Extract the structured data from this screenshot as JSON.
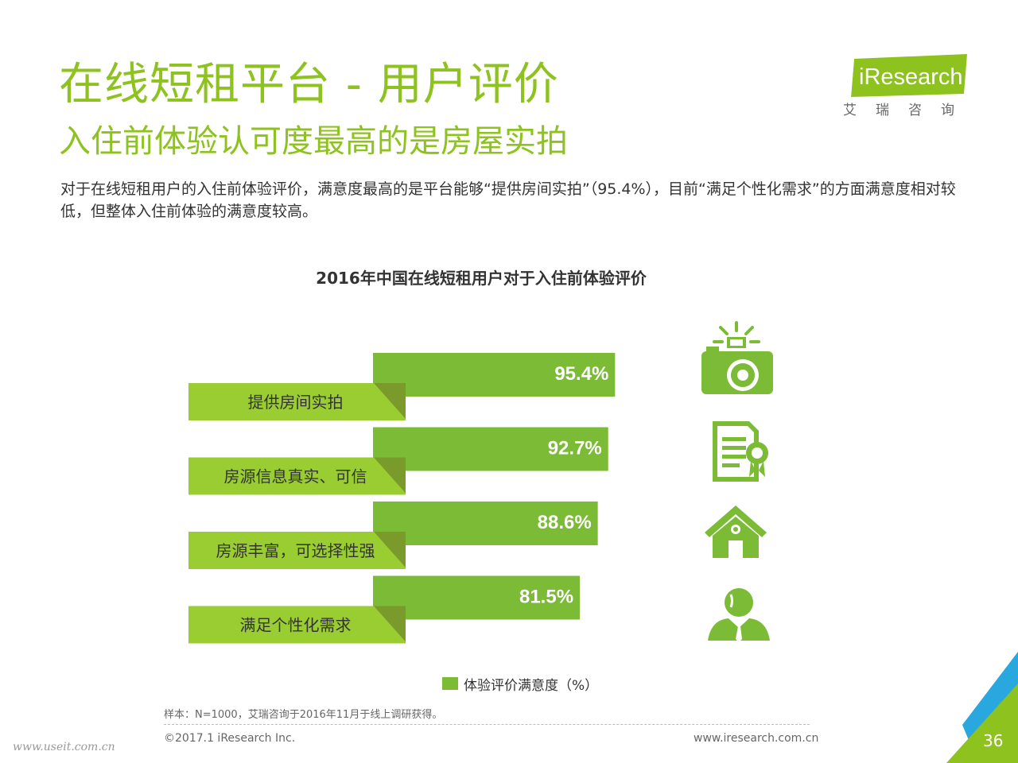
{
  "header": {
    "title": "在线短租平台 - 用户评价",
    "subtitle": "入住前体验认可度最高的是房屋实拍",
    "lead": "对于在线短租用户的入住前体验评价，满意度最高的是平台能够“提供房间实拍”（95.4%），目前“满足个性化需求”的方面满意度相对较低，但整体入住前体验的满意度较高。"
  },
  "logo": {
    "brand": "iResearch",
    "brand_cn": "艾瑞咨询",
    "color": "#8dc21f"
  },
  "chart_data": {
    "type": "bar",
    "title": "2016年中国在线短租用户对于入住前体验评价",
    "categories": [
      "提供房间实拍",
      "房源信息真实、可信",
      "房源丰富，可选择性强",
      "满足个性化需求"
    ],
    "series": [
      {
        "name": "体验评价满意度（%）",
        "values": [
          95.4,
          92.7,
          88.6,
          81.5
        ],
        "color": "#7cbb35"
      }
    ],
    "value_labels": [
      "95.4%",
      "92.7%",
      "88.6%",
      "81.5%"
    ],
    "icons": [
      "camera-icon",
      "certificate-icon",
      "house-icon",
      "person-icon"
    ],
    "label_tab_color": "#9acd32",
    "legend_position": "bottom",
    "grid": false
  },
  "footer": {
    "source": "样本：N=1000，艾瑞咨询于2016年11月于线上调研获得。",
    "copyright": "©2017.1 iResearch Inc.",
    "website": "www.iresearch.com.cn",
    "watermark": "www.useit.com.cn",
    "page_number": "36"
  },
  "colors": {
    "accent": "#8dc21f",
    "bar": "#7cbb35",
    "label_tab": "#9acd32",
    "corner_blue": "#29a8e0"
  }
}
